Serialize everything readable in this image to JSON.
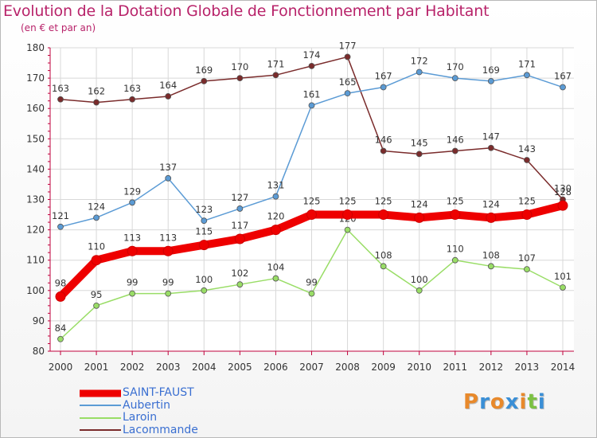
{
  "title": "Evolution de la Dotation Globale de Fonctionnement par Habitant",
  "subtitle": "(en € et par an)",
  "logo_text": "Proxiti",
  "colors": {
    "title": "#b8236a",
    "axis": "#c0003c",
    "grid": "#d8d8d8",
    "legend_text": "#3a6fd1"
  },
  "chart_data": {
    "type": "line",
    "title": "Evolution de la Dotation Globale de Fonctionnement par Habitant",
    "subtitle": "(en € et par an)",
    "x": [
      2000,
      2001,
      2002,
      2003,
      2004,
      2005,
      2006,
      2007,
      2008,
      2009,
      2010,
      2011,
      2012,
      2013,
      2014
    ],
    "ylim": [
      80,
      180
    ],
    "yticks": [
      80,
      90,
      100,
      110,
      120,
      130,
      140,
      150,
      160,
      170,
      180
    ],
    "grid": true,
    "legend_position": "bottom-left",
    "series": [
      {
        "name": "SAINT-FAUST",
        "color": "#ee0000",
        "values": [
          98,
          110,
          113,
          113,
          115,
          117,
          120,
          125,
          125,
          125,
          124,
          125,
          124,
          125,
          128
        ]
      },
      {
        "name": "Aubertin",
        "color": "#5b9bd5",
        "values": [
          121,
          124,
          129,
          137,
          123,
          127,
          131,
          161,
          165,
          167,
          172,
          170,
          169,
          171,
          167
        ]
      },
      {
        "name": "Laroin",
        "color": "#99dd66",
        "values": [
          84,
          95,
          99,
          99,
          100,
          102,
          104,
          99,
          120,
          108,
          100,
          110,
          108,
          107,
          101
        ]
      },
      {
        "name": "Lacommande",
        "color": "#7a2b2b",
        "values": [
          163,
          162,
          163,
          164,
          169,
          170,
          171,
          174,
          177,
          146,
          145,
          146,
          147,
          143,
          130
        ]
      }
    ]
  }
}
